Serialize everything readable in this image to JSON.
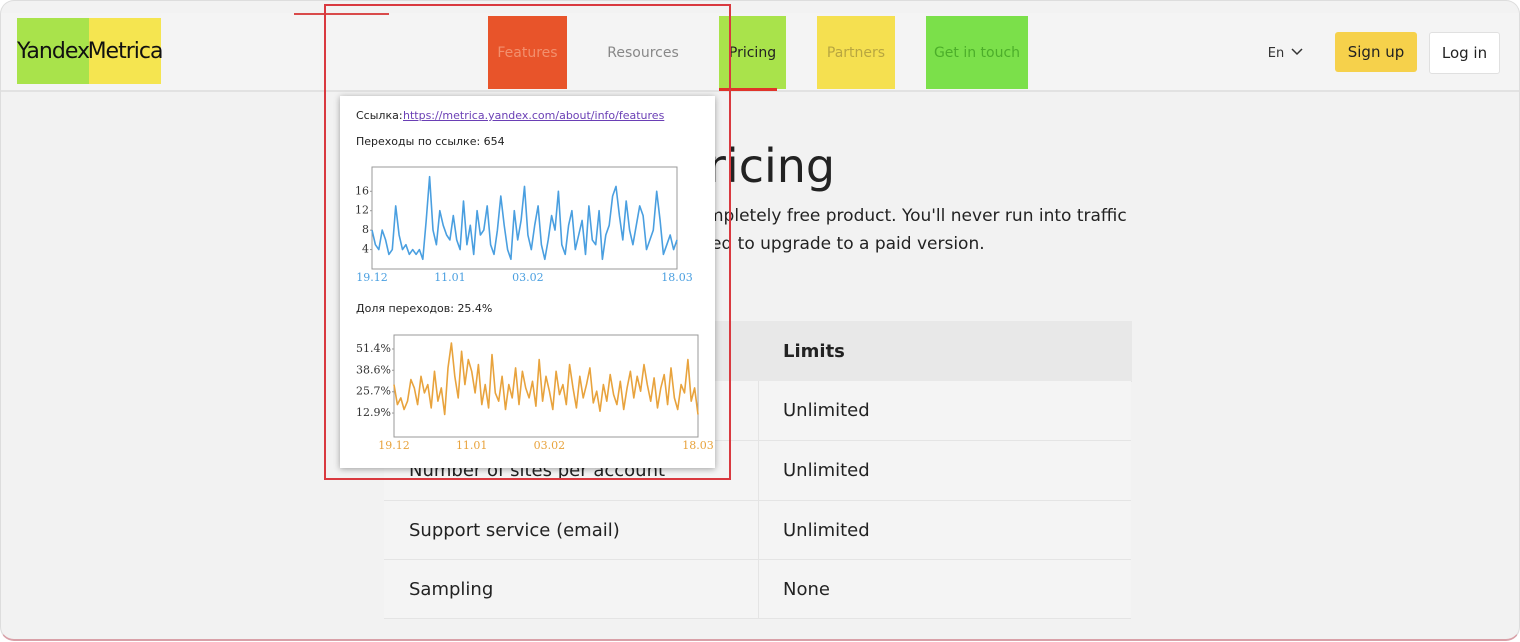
{
  "header": {
    "logo": [
      "Yandex",
      "Metrica"
    ],
    "nav": [
      "Features",
      "Resources",
      "Pricing",
      "Partners",
      "Get in touch"
    ],
    "lang": "En",
    "signup": "Sign up",
    "login": "Log in"
  },
  "hero": {
    "title": "ricing",
    "lines": [
      "mpletely free product. You'll never run into traffic",
      "ed to upgrade to a paid version."
    ]
  },
  "table": {
    "header": "Limits",
    "rows": [
      {
        "limit": "Unlimited"
      },
      {
        "label": "Number of sites per account",
        "limit": "Unlimited"
      },
      {
        "label": "Support service (email)",
        "limit": "Unlimited"
      },
      {
        "label": "Sampling",
        "limit": "None"
      }
    ]
  },
  "tooltip": {
    "link_label": "Ссылка:",
    "link": "https://metrica.yandex.com/about/info/features",
    "clicks": "Переходы по ссылке: 654",
    "share": "Доля переходов: 25.4%"
  },
  "chart_data": [
    {
      "type": "line",
      "color": "#4a9fe0",
      "grid": false,
      "ylim": [
        0,
        21
      ],
      "yticks": [
        4,
        8,
        12,
        16
      ],
      "categories": [
        "19.12",
        null,
        null,
        null,
        null,
        null,
        null,
        null,
        null,
        null,
        null,
        null,
        null,
        null,
        null,
        null,
        null,
        null,
        null,
        null,
        null,
        null,
        null,
        "11.01",
        null,
        null,
        null,
        null,
        null,
        null,
        null,
        null,
        null,
        null,
        null,
        null,
        null,
        null,
        null,
        null,
        null,
        null,
        null,
        null,
        null,
        null,
        "03.02",
        null,
        null,
        null,
        null,
        null,
        null,
        null,
        null,
        null,
        null,
        null,
        null,
        null,
        null,
        null,
        null,
        null,
        null,
        null,
        null,
        null,
        null,
        null,
        null,
        null,
        null,
        null,
        null,
        null,
        null,
        null,
        null,
        null,
        null,
        null,
        null,
        null,
        null,
        null,
        null,
        null,
        null,
        null,
        "18.03"
      ],
      "values": [
        8,
        5,
        4,
        8,
        6,
        3,
        4,
        13,
        7,
        4,
        5,
        3,
        4,
        3,
        4,
        2,
        10,
        19,
        8,
        5,
        12,
        9,
        7,
        6,
        11,
        6,
        4,
        14,
        5,
        9,
        3,
        12,
        7,
        8,
        13,
        5,
        3,
        8,
        15,
        9,
        4,
        2,
        12,
        6,
        10,
        17,
        7,
        4,
        9,
        13,
        5,
        2,
        6,
        11,
        8,
        16,
        5,
        3,
        9,
        12,
        4,
        7,
        10,
        3,
        13,
        6,
        5,
        12,
        2,
        7,
        9,
        15,
        17,
        11,
        6,
        14,
        8,
        5,
        9,
        13,
        11,
        4,
        6,
        8,
        16,
        10,
        3,
        5,
        7,
        4,
        6
      ]
    },
    {
      "type": "line",
      "color": "#e8a33d",
      "grid": false,
      "ylim": [
        -1.5,
        59.8
      ],
      "yticks": [
        {
          "value": 12.9,
          "label": "12.9%"
        },
        {
          "value": 25.7,
          "label": "25.7%"
        },
        {
          "value": 38.6,
          "label": "38.6%"
        },
        {
          "value": 51.4,
          "label": "51.4%"
        }
      ],
      "categories": [
        "19.12",
        null,
        null,
        null,
        null,
        null,
        null,
        null,
        null,
        null,
        null,
        null,
        null,
        null,
        null,
        null,
        null,
        null,
        null,
        null,
        null,
        null,
        null,
        "11.01",
        null,
        null,
        null,
        null,
        null,
        null,
        null,
        null,
        null,
        null,
        null,
        null,
        null,
        null,
        null,
        null,
        null,
        null,
        null,
        null,
        null,
        null,
        "03.02",
        null,
        null,
        null,
        null,
        null,
        null,
        null,
        null,
        null,
        null,
        null,
        null,
        null,
        null,
        null,
        null,
        null,
        null,
        null,
        null,
        null,
        null,
        null,
        null,
        null,
        null,
        null,
        null,
        null,
        null,
        null,
        null,
        null,
        null,
        null,
        null,
        null,
        null,
        null,
        null,
        null,
        null,
        null,
        "18.03"
      ],
      "values": [
        30,
        18,
        22,
        15,
        20,
        33,
        28,
        18,
        35,
        25,
        30,
        16,
        38,
        20,
        28,
        12,
        40,
        55,
        35,
        22,
        50,
        30,
        45,
        38,
        25,
        42,
        18,
        30,
        16,
        48,
        25,
        20,
        35,
        15,
        30,
        22,
        40,
        18,
        38,
        28,
        22,
        32,
        17,
        45,
        20,
        35,
        26,
        15,
        38,
        24,
        30,
        18,
        42,
        28,
        16,
        35,
        22,
        30,
        40,
        19,
        26,
        14,
        30,
        20,
        36,
        24,
        18,
        32,
        15,
        28,
        38,
        22,
        35,
        26,
        42,
        30,
        20,
        34,
        16,
        28,
        36,
        18,
        40,
        22,
        15,
        30,
        25,
        45,
        20,
        28,
        12
      ]
    }
  ]
}
